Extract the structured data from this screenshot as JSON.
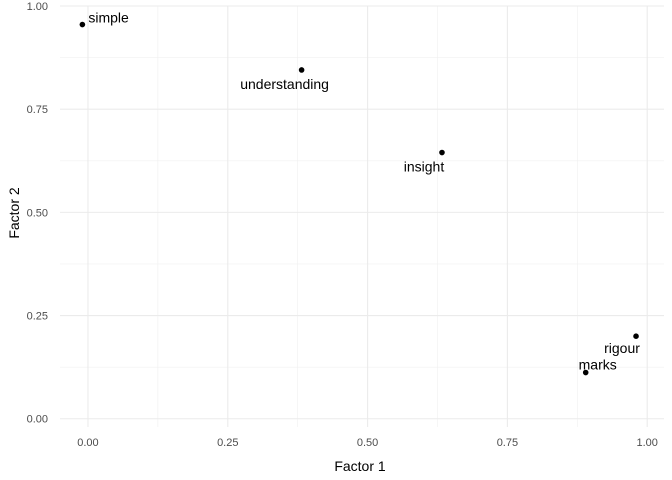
{
  "chart_data": {
    "type": "scatter",
    "title": "",
    "xlabel": "Factor 1",
    "ylabel": "Factor 2",
    "xlim": [
      -0.05,
      1.03
    ],
    "ylim": [
      -0.02,
      1.0
    ],
    "x_ticks": [
      "0.00",
      "0.25",
      "0.50",
      "0.75",
      "1.00"
    ],
    "y_ticks": [
      "0.00",
      "0.25",
      "0.50",
      "0.75",
      "1.00"
    ],
    "grid": true,
    "point_color": "#000000",
    "points": [
      {
        "label": "simple",
        "x": -0.01,
        "y": 0.955
      },
      {
        "label": "understanding",
        "x": 0.382,
        "y": 0.845
      },
      {
        "label": "insight",
        "x": 0.633,
        "y": 0.645
      },
      {
        "label": "rigour",
        "x": 0.98,
        "y": 0.2
      },
      {
        "label": "marks",
        "x": 0.89,
        "y": 0.112
      }
    ]
  }
}
